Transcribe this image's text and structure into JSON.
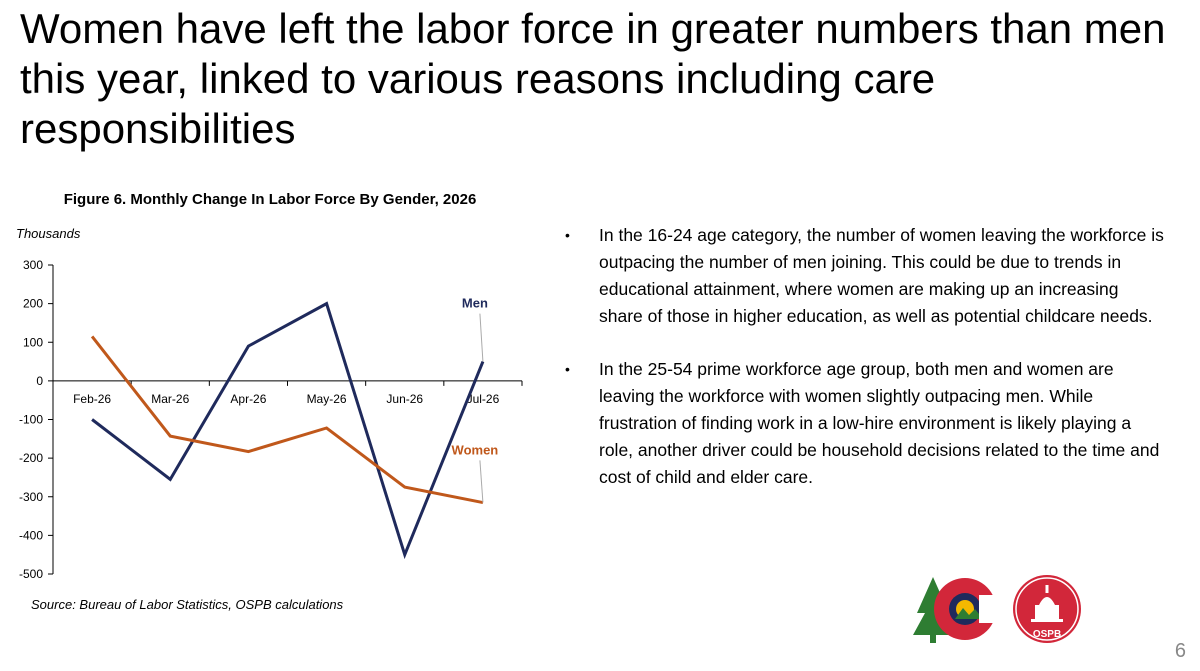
{
  "slide": {
    "title": "Women have left the labor force in greater numbers than men this year, linked to various reasons including care responsibilities",
    "page_number": "6"
  },
  "chart_data": {
    "type": "line",
    "title": "Figure 6. Monthly Change In Labor Force By Gender, 2026",
    "ylabel": "Thousands",
    "xlabel": "",
    "categories": [
      "Feb-26",
      "Mar-26",
      "Apr-26",
      "May-26",
      "Jun-26",
      "Jul-26"
    ],
    "ylim": [
      -500,
      300
    ],
    "yticks": [
      300,
      200,
      100,
      0,
      -100,
      -200,
      -300,
      -400,
      -500
    ],
    "grid": false,
    "series": [
      {
        "name": "Men",
        "color": "#1f2a5c",
        "values": [
          -100,
          -255,
          90,
          200,
          -450,
          50
        ]
      },
      {
        "name": "Women",
        "color": "#c0581b",
        "values": [
          115,
          -143,
          -183,
          -122,
          -275,
          -315
        ]
      }
    ],
    "source": "Source: Bureau of Labor Statistics, OSPB calculations"
  },
  "bullets": [
    "In the 16-24 age category, the number of women leaving the workforce is outpacing the number of men joining. This could be due to trends in educational attainment, where women are making up an increasing share of those in higher education, as well as potential childcare needs.",
    "In the 25-54 prime workforce age group, both men and women are leaving the workforce with women slightly outpacing men. While frustration of finding work in a low-hire environment is likely playing a role, another driver could be household decisions related to the time and cost of child and elder care."
  ],
  "logo": {
    "text": "OSPB",
    "colors": {
      "red": "#d2273a",
      "navy": "#1f2a5c",
      "green": "#2e7d32",
      "gold": "#f5b800"
    }
  }
}
